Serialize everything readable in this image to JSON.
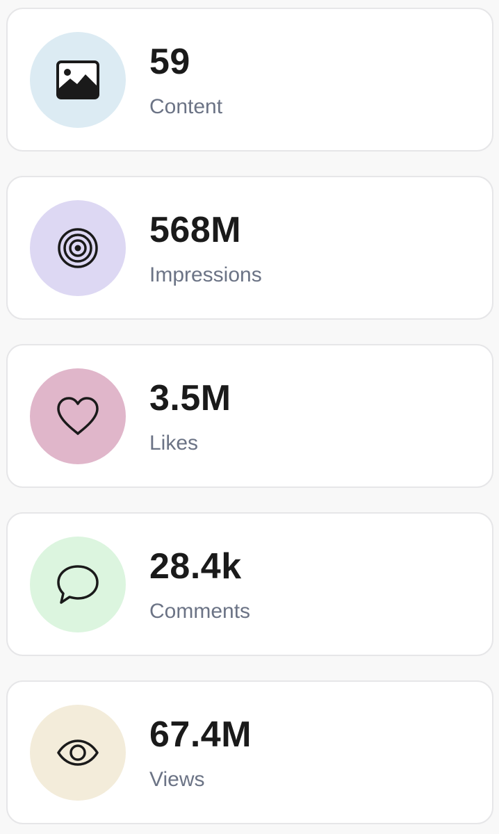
{
  "stats": [
    {
      "value": "59",
      "label": "Content",
      "icon": "image-icon",
      "color": "#dcebf3"
    },
    {
      "value": "568M",
      "label": "Impressions",
      "icon": "target-icon",
      "color": "#ddd8f3"
    },
    {
      "value": "3.5M",
      "label": "Likes",
      "icon": "heart-icon",
      "color": "#e0b6ca"
    },
    {
      "value": "28.4k",
      "label": "Comments",
      "icon": "comment-icon",
      "color": "#dcf5df"
    },
    {
      "value": "67.4M",
      "label": "Views",
      "icon": "eye-icon",
      "color": "#f3ecda"
    }
  ]
}
